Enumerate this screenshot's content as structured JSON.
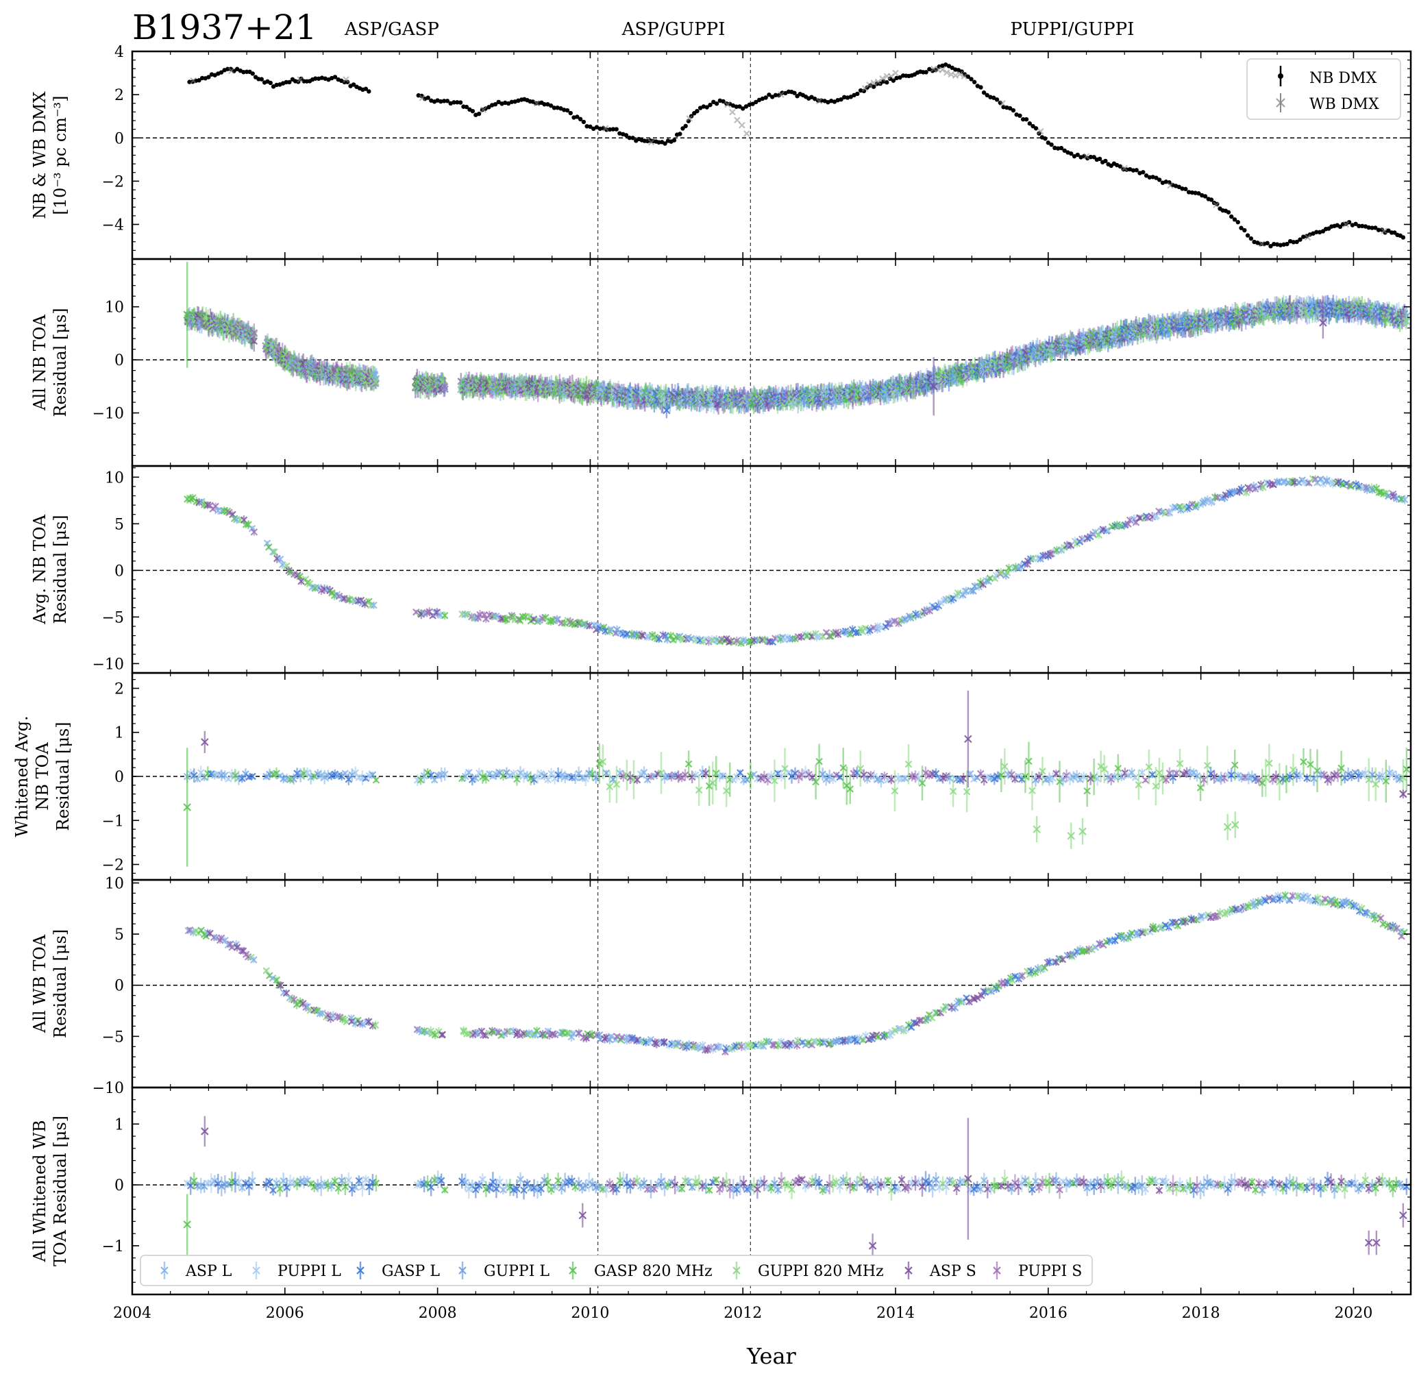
{
  "title": "B1937+21",
  "backend_labels": [
    "ASP/GASP",
    "ASP/GUPPI",
    "PUPPI/GUPPI"
  ],
  "backend_transitions": [
    2010.1,
    2012.1
  ],
  "chart_data": {
    "type": "scatter",
    "xlabel": "Year",
    "xlim": [
      2004,
      2020.75
    ],
    "xticks": [
      2004,
      2006,
      2008,
      2010,
      2012,
      2014,
      2016,
      2018,
      2020
    ],
    "legend_bottom": [
      "ASP L",
      "PUPPI L",
      "GASP L",
      "GUPPI L",
      "GASP 820 MHz",
      "GUPPI 820 MHz",
      "ASP S",
      "PUPPI S"
    ],
    "colors": {
      "ASP L": "#7fb3ea",
      "PUPPI L": "#a6ccf0",
      "GASP L": "#3a73d6",
      "GUPPI L": "#6a9fe0",
      "GASP 820 MHz": "#55c24a",
      "GUPPI 820 MHz": "#88d87f",
      "ASP S": "#7b4f9e",
      "PUPPI S": "#9b6fb8",
      "NB DMX": "#000000",
      "WB DMX": "#888888"
    },
    "panels": [
      {
        "ylabel": [
          "NB & WB DMX",
          "[10⁻³ pc cm⁻³]"
        ],
        "ylim": [
          -5.6,
          4.0
        ],
        "yticks": [
          -4,
          -2,
          0,
          2,
          4
        ],
        "legend": [
          "NB DMX",
          "WB DMX"
        ],
        "series": [
          {
            "name": "NB DMX",
            "x": [
              2004.75,
              2005.0,
              2005.25,
              2005.5,
              2005.85,
              2006.1,
              2006.4,
              2006.7,
              2006.9,
              2007.1,
              2007.75,
              2008.0,
              2008.3,
              2008.5,
              2008.8,
              2009.1,
              2009.4,
              2009.7,
              2010.0,
              2010.3,
              2010.6,
              2010.9,
              2011.1,
              2011.4,
              2011.7,
              2012.0,
              2012.3,
              2012.6,
              2012.9,
              2013.2,
              2013.5,
              2013.8,
              2014.1,
              2014.4,
              2014.7,
              2014.95,
              2015.2,
              2015.5,
              2015.8,
              2016.0,
              2016.3,
              2016.6,
              2016.9,
              2017.2,
              2017.5,
              2017.8,
              2018.1,
              2018.4,
              2018.7,
              2019.0,
              2019.3,
              2019.6,
              2019.9,
              2020.2,
              2020.5,
              2020.65
            ],
            "y": [
              2.6,
              2.85,
              3.15,
              3.1,
              2.4,
              2.65,
              2.7,
              2.75,
              2.4,
              2.15,
              1.9,
              1.7,
              1.6,
              1.1,
              1.6,
              1.75,
              1.6,
              1.2,
              0.5,
              0.4,
              -0.1,
              -0.25,
              -0.1,
              1.3,
              1.7,
              1.35,
              1.9,
              2.1,
              1.85,
              1.65,
              2.1,
              2.55,
              2.85,
              3.1,
              3.35,
              2.9,
              2.0,
              1.3,
              0.6,
              -0.25,
              -0.75,
              -0.95,
              -1.3,
              -1.6,
              -2.0,
              -2.4,
              -2.8,
              -3.6,
              -4.8,
              -5.0,
              -4.7,
              -4.3,
              -3.95,
              -4.1,
              -4.4,
              -4.6
            ]
          },
          {
            "name": "WB DMX",
            "x": [
              2004.8,
              2005.3,
              2006.2,
              2006.8,
              2007.8,
              2008.6,
              2009.3,
              2010.2,
              2010.8,
              2011.3,
              2011.8,
              2012.05,
              2012.5,
              2013.0,
              2013.6,
              2014.0,
              2014.5,
              2014.9,
              2015.4,
              2015.9,
              2016.5,
              2017.0,
              2017.6,
              2018.2,
              2018.8,
              2019.4,
              2019.9,
              2020.4
            ],
            "y": [
              2.65,
              3.1,
              2.7,
              2.7,
              1.85,
              1.3,
              1.6,
              0.45,
              -0.2,
              0.9,
              1.5,
              0.2,
              2.0,
              1.7,
              2.3,
              3.0,
              3.2,
              2.85,
              1.6,
              0.3,
              -0.85,
              -1.4,
              -2.2,
              -3.1,
              -4.9,
              -4.6,
              -4.0,
              -4.3
            ]
          }
        ]
      },
      {
        "ylabel": [
          "All NB TOA",
          "Residual [μs]"
        ],
        "ylim": [
          -20,
          19
        ],
        "yticks": [
          -10,
          0,
          10
        ],
        "curve": {
          "x": [
            2004.75,
            2005.0,
            2005.3,
            2005.5,
            2005.85,
            2006.1,
            2006.4,
            2006.7,
            2007.1,
            2007.8,
            2008.4,
            2009.0,
            2009.6,
            2010.0,
            2010.5,
            2011.0,
            2011.5,
            2012.0,
            2012.6,
            2013.2,
            2013.8,
            2014.2,
            2014.6,
            2015.0,
            2015.5,
            2016.0,
            2016.5,
            2017.0,
            2017.5,
            2018.0,
            2018.5,
            2019.0,
            2019.5,
            2020.0,
            2020.4,
            2020.65
          ],
          "y": [
            7.8,
            7.2,
            6.0,
            5.1,
            2.0,
            -0.8,
            -2.0,
            -2.8,
            -3.5,
            -4.6,
            -4.9,
            -5.0,
            -5.5,
            -6.0,
            -6.8,
            -7.2,
            -7.4,
            -7.6,
            -7.3,
            -6.8,
            -6.0,
            -5.0,
            -3.5,
            -2.2,
            -0.2,
            2.0,
            3.5,
            5.0,
            6.2,
            7.0,
            8.2,
            9.3,
            9.6,
            9.4,
            8.6,
            8.0
          ]
        },
        "errors": {
          "GASP 820 MHz": [
            {
              "x": 2004.72,
              "y": 8.5,
              "err": 10.0
            }
          ],
          "ASP S": [
            {
              "x": 2014.5,
              "y": -5.0,
              "err": 5.5
            },
            {
              "x": 2019.6,
              "y": 7.0,
              "err": 3.0
            }
          ],
          "GASP L": [
            {
              "x": 2011.0,
              "y": -9.5,
              "err": 1.5
            }
          ]
        }
      },
      {
        "ylabel": [
          "Avg. NB TOA",
          "Residual [μs]"
        ],
        "ylim": [
          -11,
          11.2
        ],
        "yticks": [
          -10,
          -5,
          0,
          5,
          10
        ],
        "curve": {
          "x": [
            2004.75,
            2005.0,
            2005.3,
            2005.5,
            2005.85,
            2006.1,
            2006.4,
            2006.7,
            2007.1,
            2007.8,
            2008.4,
            2009.0,
            2009.6,
            2010.0,
            2010.5,
            2011.0,
            2011.5,
            2012.0,
            2012.6,
            2013.2,
            2013.8,
            2014.2,
            2014.6,
            2015.0,
            2015.5,
            2016.0,
            2016.5,
            2017.0,
            2017.5,
            2018.0,
            2018.5,
            2019.0,
            2019.5,
            2020.0,
            2020.4,
            2020.65
          ],
          "y": [
            7.7,
            7.1,
            5.9,
            5.0,
            2.0,
            -0.5,
            -1.8,
            -2.7,
            -3.5,
            -4.6,
            -4.9,
            -5.1,
            -5.4,
            -6.0,
            -6.8,
            -7.2,
            -7.4,
            -7.7,
            -7.3,
            -6.8,
            -6.2,
            -5.0,
            -3.6,
            -2.0,
            0.0,
            1.8,
            3.5,
            5.0,
            6.2,
            7.2,
            8.4,
            9.5,
            9.6,
            9.2,
            8.3,
            7.5
          ]
        }
      },
      {
        "ylabel": [
          "Whitened Avg.",
          "NB TOA",
          "Residual [μs]"
        ],
        "ylim": [
          -2.35,
          2.35
        ],
        "yticks": [
          -2,
          -1,
          0,
          1,
          2
        ],
        "notable": [
          {
            "x": 2004.72,
            "y": -0.7,
            "err": 1.35,
            "series": "GASP 820 MHz"
          },
          {
            "x": 2004.95,
            "y": 0.78,
            "err": 0.25,
            "series": "ASP S"
          },
          {
            "x": 2014.95,
            "y": 0.85,
            "err": 1.1,
            "series": "ASP S"
          },
          {
            "x": 2015.85,
            "y": -1.2,
            "err": 0.3,
            "series": "GUPPI 820 MHz"
          },
          {
            "x": 2016.3,
            "y": -1.35,
            "err": 0.3,
            "series": "GUPPI 820 MHz"
          },
          {
            "x": 2016.45,
            "y": -1.25,
            "err": 0.3,
            "series": "GUPPI 820 MHz"
          },
          {
            "x": 2018.35,
            "y": -1.15,
            "err": 0.3,
            "series": "GUPPI 820 MHz"
          },
          {
            "x": 2018.45,
            "y": -1.1,
            "err": 0.3,
            "series": "GUPPI 820 MHz"
          },
          {
            "x": 2020.65,
            "y": -0.4,
            "err": 0.1,
            "series": "ASP S"
          }
        ]
      },
      {
        "ylabel": [
          "All WB TOA",
          "Residual [μs]"
        ],
        "ylim": [
          -10,
          10.3
        ],
        "yticks": [
          -10,
          -5,
          0,
          5,
          10
        ],
        "curve": {
          "x": [
            2004.75,
            2005.0,
            2005.3,
            2005.5,
            2005.85,
            2006.1,
            2006.4,
            2006.7,
            2007.1,
            2007.8,
            2008.4,
            2009.0,
            2009.6,
            2010.0,
            2010.5,
            2011.0,
            2011.5,
            2011.8,
            2012.0,
            2012.6,
            2013.2,
            2013.8,
            2014.2,
            2014.6,
            2015.0,
            2015.5,
            2016.0,
            2016.5,
            2017.0,
            2017.5,
            2018.0,
            2018.5,
            2019.0,
            2019.5,
            2020.0,
            2020.4,
            2020.65
          ],
          "y": [
            5.3,
            5.0,
            4.0,
            3.2,
            0.6,
            -1.5,
            -2.6,
            -3.2,
            -3.8,
            -4.6,
            -4.7,
            -4.7,
            -4.7,
            -5.0,
            -5.3,
            -5.7,
            -6.1,
            -6.3,
            -5.8,
            -5.7,
            -5.5,
            -5.0,
            -4.0,
            -2.5,
            -1.3,
            0.5,
            2.0,
            3.5,
            4.8,
            5.7,
            6.5,
            7.5,
            8.6,
            8.4,
            7.8,
            6.2,
            5.0
          ]
        }
      },
      {
        "ylabel": [
          "All Whitened WB",
          "TOA Residual [μs]"
        ],
        "ylim": [
          -1.8,
          1.6
        ],
        "yticks": [
          -1,
          0,
          1
        ],
        "notable": [
          {
            "x": 2004.72,
            "y": -0.65,
            "err": 0.5,
            "series": "GASP 820 MHz"
          },
          {
            "x": 2004.95,
            "y": 0.88,
            "err": 0.25,
            "series": "ASP S"
          },
          {
            "x": 2014.95,
            "y": 0.1,
            "err": 1.0,
            "series": "ASP S"
          },
          {
            "x": 2013.7,
            "y": -1.0,
            "err": 0.2,
            "series": "ASP S"
          },
          {
            "x": 2009.9,
            "y": -0.5,
            "err": 0.2,
            "series": "ASP S"
          },
          {
            "x": 2020.2,
            "y": -0.95,
            "err": 0.2,
            "series": "ASP S"
          },
          {
            "x": 2020.3,
            "y": -0.95,
            "err": 0.2,
            "series": "ASP S"
          },
          {
            "x": 2020.65,
            "y": -0.5,
            "err": 0.2,
            "series": "ASP S"
          }
        ]
      }
    ]
  }
}
